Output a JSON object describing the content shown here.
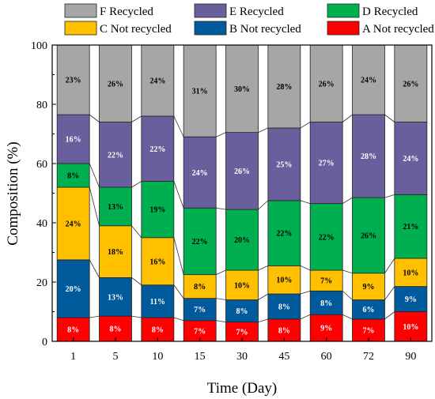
{
  "chart_data": {
    "type": "bar",
    "stacked": true,
    "xlabel": "Time (Day)",
    "ylabel": "Composition (%)",
    "ylim": [
      0,
      100
    ],
    "yticks": [
      0,
      20,
      40,
      60,
      80,
      100
    ],
    "categories": [
      "1",
      "5",
      "10",
      "15",
      "30",
      "45",
      "60",
      "72",
      "90"
    ],
    "series": [
      {
        "name": "A Not recycled",
        "color": "#ff0000",
        "label_color": "#ffffff",
        "values": [
          8,
          8.5,
          8,
          7,
          6.5,
          7.5,
          9,
          7.5,
          10
        ],
        "labels": [
          "8%",
          "8%",
          "8%",
          "7%",
          "7%",
          "8%",
          "9%",
          "7%",
          "10%"
        ]
      },
      {
        "name": "B Not recycled",
        "color": "#005a9c",
        "label_color": "#ffffff",
        "values": [
          19.5,
          13,
          11,
          7.5,
          7.5,
          8.5,
          8,
          6.5,
          8.5
        ],
        "labels": [
          "20%",
          "13%",
          "11%",
          "7%",
          "8%",
          "8%",
          "8%",
          "6%",
          "9%"
        ]
      },
      {
        "name": "C Not recycled",
        "color": "#ffc000",
        "label_color": "#000000",
        "values": [
          24.5,
          17.5,
          16,
          8,
          10,
          9.5,
          7,
          9,
          9.5
        ],
        "labels": [
          "24%",
          "18%",
          "16%",
          "8%",
          "10%",
          "10%",
          "7%",
          "9%",
          "10%"
        ]
      },
      {
        "name": "D Recycled",
        "color": "#00b050",
        "label_color": "#000000",
        "values": [
          8,
          13,
          19,
          22.5,
          20.5,
          22,
          22.5,
          25.5,
          21.5
        ],
        "labels": [
          "8%",
          "13%",
          "19%",
          "22%",
          "20%",
          "22%",
          "22%",
          "26%",
          "21%"
        ]
      },
      {
        "name": "E Recycled",
        "color": "#6a5f9d",
        "label_color": "#ffffff",
        "values": [
          16.5,
          22,
          22,
          24,
          26,
          24.5,
          27.5,
          28,
          24.5
        ],
        "labels": [
          "16%",
          "22%",
          "22%",
          "24%",
          "26%",
          "25%",
          "27%",
          "28%",
          "24%"
        ]
      },
      {
        "name": "F Recycled",
        "color": "#a6a6a6",
        "label_color": "#000000",
        "values": [
          23.5,
          26,
          24,
          31,
          29.5,
          28,
          26,
          23.5,
          26
        ],
        "labels": [
          "23%",
          "26%",
          "24%",
          "31%",
          "30%",
          "28%",
          "26%",
          "24%",
          "26%"
        ]
      }
    ],
    "legend": {
      "position": "top",
      "order": [
        "F Recycled",
        "E Recycled",
        "D Recycled",
        "C Not recycled",
        "B Not recycled",
        "A Not recycled"
      ]
    },
    "grid": false
  }
}
